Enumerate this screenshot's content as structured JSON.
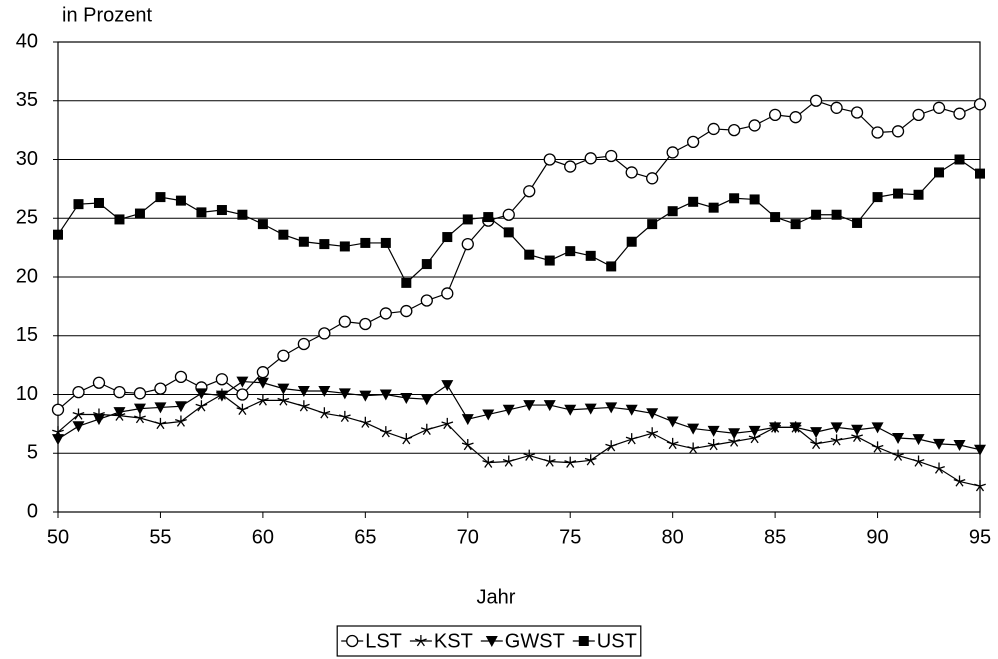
{
  "chart_data": {
    "type": "line",
    "y_label": "in Prozent",
    "x_label": "Jahr",
    "x": [
      50,
      51,
      52,
      53,
      54,
      55,
      56,
      57,
      58,
      59,
      60,
      61,
      62,
      63,
      64,
      65,
      66,
      67,
      68,
      69,
      70,
      71,
      72,
      73,
      74,
      75,
      76,
      77,
      78,
      79,
      80,
      81,
      82,
      83,
      84,
      85,
      86,
      87,
      88,
      89,
      90,
      91,
      92,
      93,
      94,
      95
    ],
    "xlim": [
      50,
      95
    ],
    "xticks": [
      50,
      55,
      60,
      65,
      70,
      75,
      80,
      85,
      90,
      95
    ],
    "ylim": [
      0,
      40
    ],
    "yticks": [
      0,
      5,
      10,
      15,
      20,
      25,
      30,
      35,
      40
    ],
    "grid": true,
    "legend": "bottom",
    "series": [
      {
        "name": "LST",
        "color": "#000000",
        "marker": "circle",
        "values": [
          8.7,
          10.2,
          11.0,
          10.2,
          10.1,
          10.5,
          11.5,
          10.6,
          11.3,
          10.0,
          11.9,
          13.3,
          14.3,
          15.2,
          16.2,
          16.0,
          16.9,
          17.1,
          18.0,
          18.6,
          22.8,
          24.8,
          25.3,
          27.3,
          30.0,
          29.4,
          30.1,
          30.3,
          28.9,
          28.4,
          30.6,
          31.5,
          32.6,
          32.5,
          32.9,
          33.8,
          33.6,
          35.0,
          34.4,
          34.0,
          32.3,
          32.4,
          33.8,
          34.4,
          33.9,
          34.7
        ]
      },
      {
        "name": "KST",
        "color": "#000000",
        "marker": "star",
        "values": [
          6.8,
          8.3,
          8.3,
          8.2,
          8.0,
          7.5,
          7.7,
          9.0,
          10.0,
          8.7,
          9.5,
          9.5,
          9.0,
          8.4,
          8.1,
          7.6,
          6.8,
          6.2,
          7.0,
          7.5,
          5.7,
          4.2,
          4.3,
          4.8,
          4.3,
          4.2,
          4.4,
          5.6,
          6.2,
          6.7,
          5.8,
          5.4,
          5.7,
          6.0,
          6.3,
          7.2,
          7.2,
          5.8,
          6.1,
          6.4,
          5.5,
          4.8,
          4.3,
          3.7,
          2.6,
          2.2
        ]
      },
      {
        "name": "GWST",
        "color": "#000000",
        "marker": "triangle-down",
        "values": [
          6.2,
          7.3,
          7.9,
          8.5,
          8.8,
          8.9,
          9.0,
          10.1,
          9.9,
          11.1,
          11.0,
          10.5,
          10.3,
          10.3,
          10.1,
          9.9,
          10.0,
          9.7,
          9.6,
          10.8,
          7.9,
          8.3,
          8.7,
          9.1,
          9.1,
          8.7,
          8.8,
          8.9,
          8.7,
          8.4,
          7.7,
          7.1,
          6.9,
          6.7,
          6.9,
          7.2,
          7.2,
          6.8,
          7.2,
          7.0,
          7.2,
          6.3,
          6.2,
          5.8,
          5.7,
          5.3
        ]
      },
      {
        "name": "UST",
        "color": "#000000",
        "marker": "square",
        "values": [
          23.6,
          26.2,
          26.3,
          24.9,
          25.4,
          26.8,
          26.5,
          25.5,
          25.7,
          25.3,
          24.5,
          23.6,
          23.0,
          22.8,
          22.6,
          22.9,
          22.9,
          19.5,
          21.1,
          23.4,
          24.9,
          25.1,
          23.8,
          21.9,
          21.4,
          22.2,
          21.8,
          20.9,
          23.0,
          24.5,
          25.6,
          26.4,
          25.9,
          26.7,
          26.6,
          25.1,
          24.5,
          25.3,
          25.3,
          24.6,
          26.8,
          27.1,
          27.0,
          28.9,
          30.0,
          28.8
        ]
      }
    ]
  }
}
